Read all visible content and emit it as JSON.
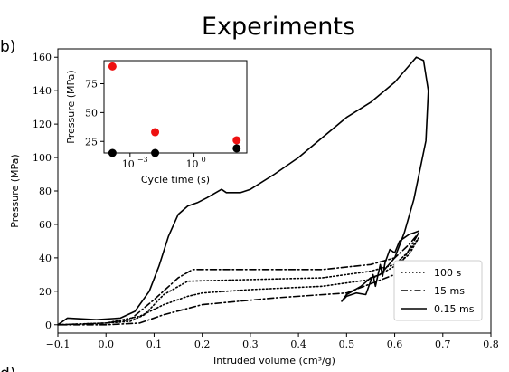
{
  "chart_data": {
    "type": "line",
    "title": "Experiments",
    "panel_labels": [
      "b)",
      "d)"
    ],
    "xlabel": "Intruded volume (cm³/g)",
    "ylabel": "Pressure (MPa)",
    "xlim": [
      -0.1,
      0.8
    ],
    "ylim": [
      -5,
      165
    ],
    "xticks": [
      "−0.1",
      "0.0",
      "0.1",
      "0.2",
      "0.3",
      "0.4",
      "0.5",
      "0.6",
      "0.7",
      "0.8"
    ],
    "yticks": [
      "0",
      "20",
      "40",
      "60",
      "80",
      "100",
      "120",
      "140",
      "160"
    ],
    "legend_position": "bottom-right",
    "series": [
      {
        "name": "100 s",
        "dash": "dotted",
        "x": [
          -0.1,
          0.0,
          0.05,
          0.08,
          0.12,
          0.17,
          0.3,
          0.45,
          0.55,
          0.6,
          0.63,
          0.65,
          0.63,
          0.6,
          0.55,
          0.45,
          0.3,
          0.2,
          0.17,
          0.12,
          0.07,
          0.0,
          -0.1
        ],
        "y": [
          0,
          1,
          2,
          6,
          18,
          26,
          27,
          28,
          32,
          36,
          44,
          52,
          42,
          35,
          27,
          23,
          21,
          19,
          17,
          12,
          5,
          1,
          0
        ]
      },
      {
        "name": "15 ms",
        "dash": "dashdot",
        "x": [
          -0.1,
          0.0,
          0.05,
          0.1,
          0.15,
          0.18,
          0.3,
          0.45,
          0.55,
          0.6,
          0.63,
          0.65,
          0.6,
          0.5,
          0.35,
          0.2,
          0.12,
          0.07,
          0.0,
          -0.1
        ],
        "y": [
          0,
          1,
          3,
          15,
          28,
          33,
          33,
          33,
          36,
          40,
          48,
          55,
          30,
          19,
          16,
          12,
          6,
          1,
          0,
          0
        ]
      },
      {
        "name": "0.15 ms",
        "dash": "solid",
        "x": [
          -0.1,
          -0.08,
          -0.02,
          0.03,
          0.06,
          0.09,
          0.11,
          0.13,
          0.15,
          0.17,
          0.19,
          0.21,
          0.24,
          0.25,
          0.28,
          0.3,
          0.35,
          0.4,
          0.45,
          0.5,
          0.55,
          0.6,
          0.63,
          0.645,
          0.66,
          0.67,
          0.665,
          0.64,
          0.62,
          0.6,
          0.585,
          0.57,
          0.55,
          0.53,
          0.5,
          0.49,
          0.5,
          0.52,
          0.54,
          0.555,
          0.56,
          0.57,
          0.575,
          0.58,
          0.59,
          0.6,
          0.61,
          0.62,
          0.63,
          0.64,
          0.65
        ],
        "y": [
          0,
          4,
          3,
          4,
          8,
          20,
          35,
          53,
          66,
          71,
          73,
          76,
          81,
          79,
          79,
          81,
          90,
          100,
          112,
          124,
          133,
          145,
          155,
          160,
          158,
          140,
          110,
          75,
          55,
          40,
          35,
          30,
          28,
          23,
          18,
          14,
          17,
          19,
          18,
          30,
          23,
          36,
          29,
          37,
          45,
          43,
          50,
          52,
          54,
          55,
          56
        ]
      }
    ],
    "inset": {
      "type": "scatter",
      "xscale": "log",
      "xlabel": "Cycle time (s)",
      "ylabel": "Pressure (MPa)",
      "xlim": [
        6e-05,
        300
      ],
      "ylim": [
        15,
        95
      ],
      "xticks": [
        {
          "value": 0.001,
          "base": "10",
          "exp": "−3"
        },
        {
          "value": 1,
          "base": "10",
          "exp": "0"
        }
      ],
      "yticks": [
        "25",
        "50",
        "75"
      ],
      "series": [
        {
          "color": "#ee1111",
          "x": [
            0.00015,
            0.015,
            100
          ],
          "y": [
            90,
            33,
            26
          ]
        },
        {
          "color": "#000000",
          "x": [
            0.00015,
            0.015,
            100
          ],
          "y": [
            15,
            15,
            19
          ]
        }
      ]
    }
  }
}
